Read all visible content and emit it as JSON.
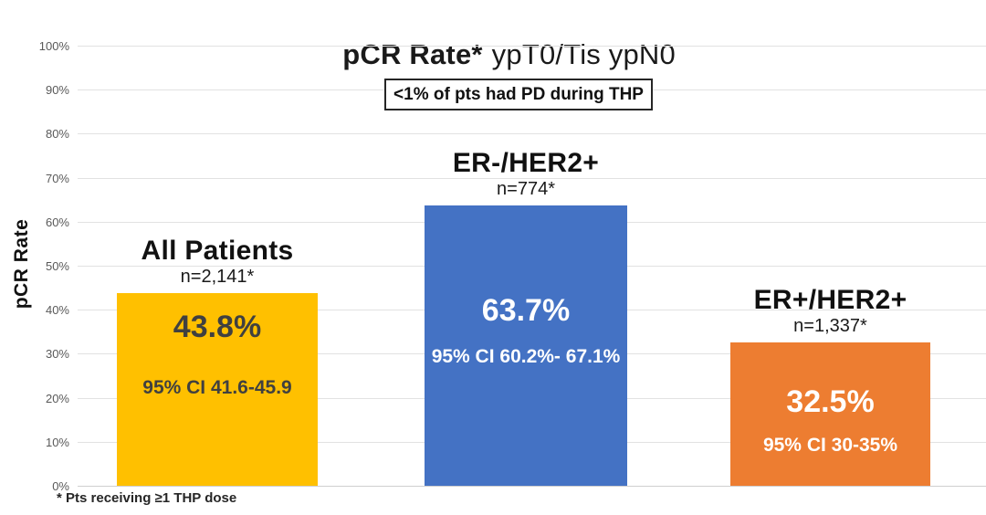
{
  "title": {
    "bold": "pCR Rate*",
    "regular": "ypT0/Tis ypN0"
  },
  "annotation": "<1% of pts had PD during THP",
  "footnote": "* Pts receiving ≥1 THP dose",
  "colors": {
    "bar_gold": "#FFC000",
    "bar_blue": "#4472C4",
    "bar_orange": "#ED7D31",
    "dark_label": "#404040",
    "white_label": "#FFFFFF",
    "gridline": "#E2E2E2"
  },
  "chart_data": {
    "type": "bar",
    "title": "pCR Rate* ypT0/Tis ypN0",
    "xlabel": "",
    "ylabel": "pCR Rate",
    "ylim": [
      0,
      100
    ],
    "grid": true,
    "legend": "none",
    "y_ticks": [
      "0%",
      "10%",
      "20%",
      "30%",
      "40%",
      "50%",
      "60%",
      "70%",
      "80%",
      "90%",
      "100%"
    ],
    "categories": [
      "All Patients",
      "ER-/HER2+",
      "ER+/HER2+"
    ],
    "values": [
      43.8,
      63.7,
      32.5
    ],
    "bars": [
      {
        "category": "All Patients",
        "n_label": "n=2,141*",
        "value": 43.8,
        "value_label": "43.8%",
        "ci_label": "95% CI 41.6-45.9",
        "color": "#FFC000",
        "text_color": "#404040"
      },
      {
        "category": "ER-/HER2+",
        "n_label": "n=774*",
        "value": 63.7,
        "value_label": "63.7%",
        "ci_label": "95% CI 60.2%- 67.1%",
        "color": "#4472C4",
        "text_color": "#FFFFFF"
      },
      {
        "category": "ER+/HER2+",
        "n_label": "n=1,337*",
        "value": 32.5,
        "value_label": "32.5%",
        "ci_label": "95% CI 30-35%",
        "color": "#ED7D31",
        "text_color": "#FFFFFF"
      }
    ]
  }
}
